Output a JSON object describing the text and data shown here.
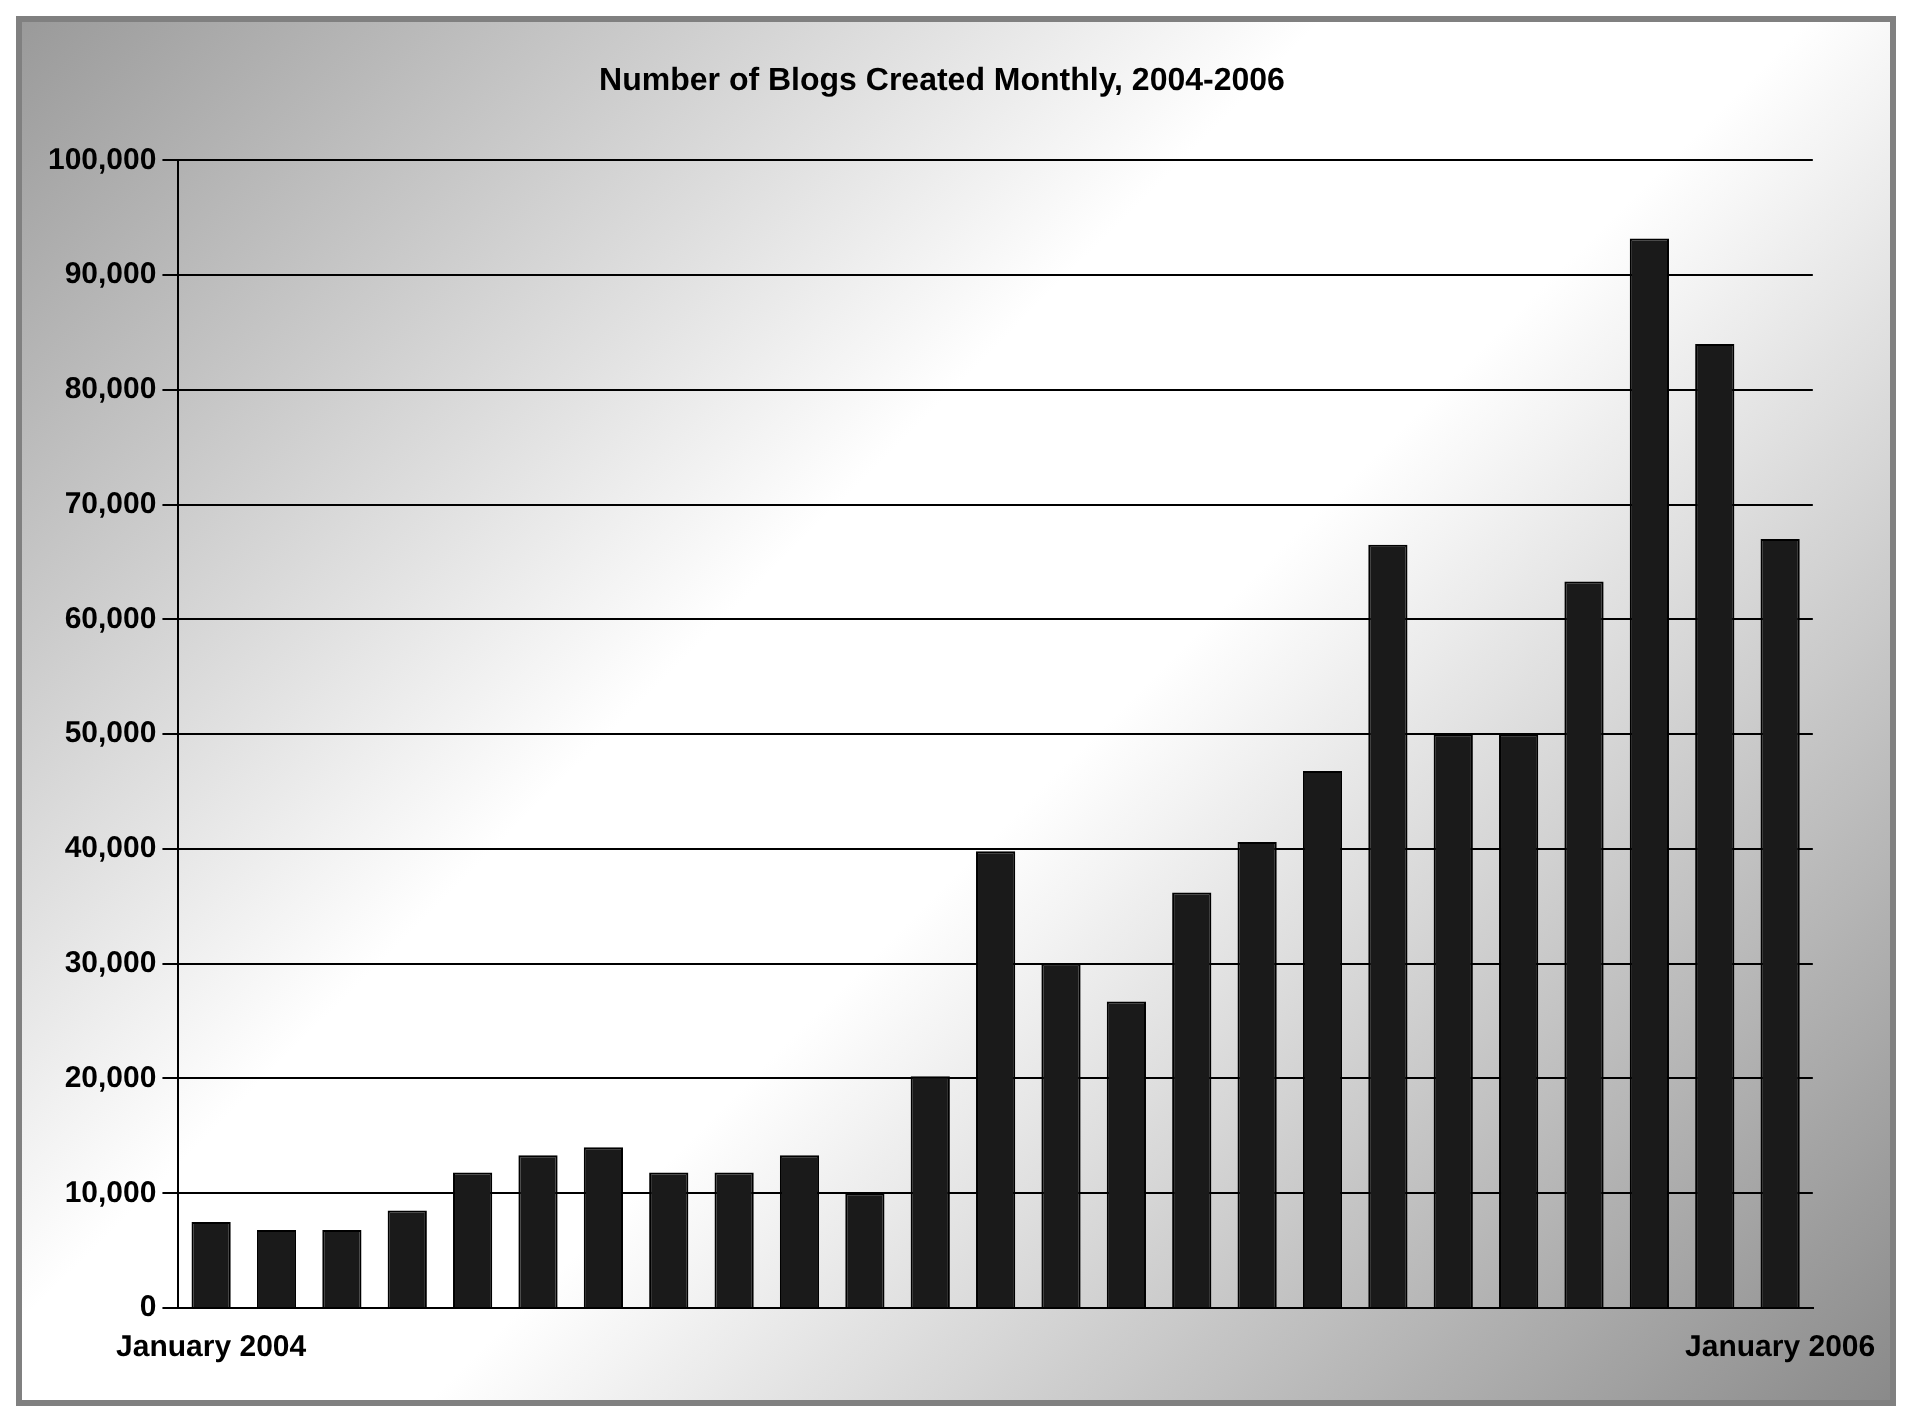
{
  "chart_data": {
    "type": "bar",
    "title": "Number of Blogs Created Monthly, 2004-2006",
    "categories": [
      "January 2004",
      null,
      null,
      null,
      null,
      null,
      null,
      null,
      null,
      null,
      null,
      null,
      null,
      null,
      null,
      null,
      null,
      null,
      null,
      null,
      null,
      null,
      null,
      null,
      "January 2006"
    ],
    "values": [
      7500,
      6800,
      6800,
      8500,
      11800,
      13300,
      14000,
      11800,
      11800,
      13300,
      10000,
      20200,
      39800,
      30000,
      26700,
      36200,
      40600,
      46800,
      66500,
      50000,
      50000,
      63300,
      93200,
      84000,
      67000
    ],
    "color": "#1a1a1a",
    "ylim": [
      0,
      100000
    ],
    "yticks": [
      {
        "value": 0,
        "label": "0"
      },
      {
        "value": 10000,
        "label": "10,000"
      },
      {
        "value": 20000,
        "label": "20,000"
      },
      {
        "value": 30000,
        "label": "30,000"
      },
      {
        "value": 40000,
        "label": "40,000"
      },
      {
        "value": 50000,
        "label": "50,000"
      },
      {
        "value": 60000,
        "label": "60,000"
      },
      {
        "value": 70000,
        "label": "70,000"
      },
      {
        "value": 80000,
        "label": "80,000"
      },
      {
        "value": 90000,
        "label": "90,000"
      },
      {
        "value": 100000,
        "label": "100,000"
      }
    ],
    "grid": "y",
    "legend": false
  }
}
